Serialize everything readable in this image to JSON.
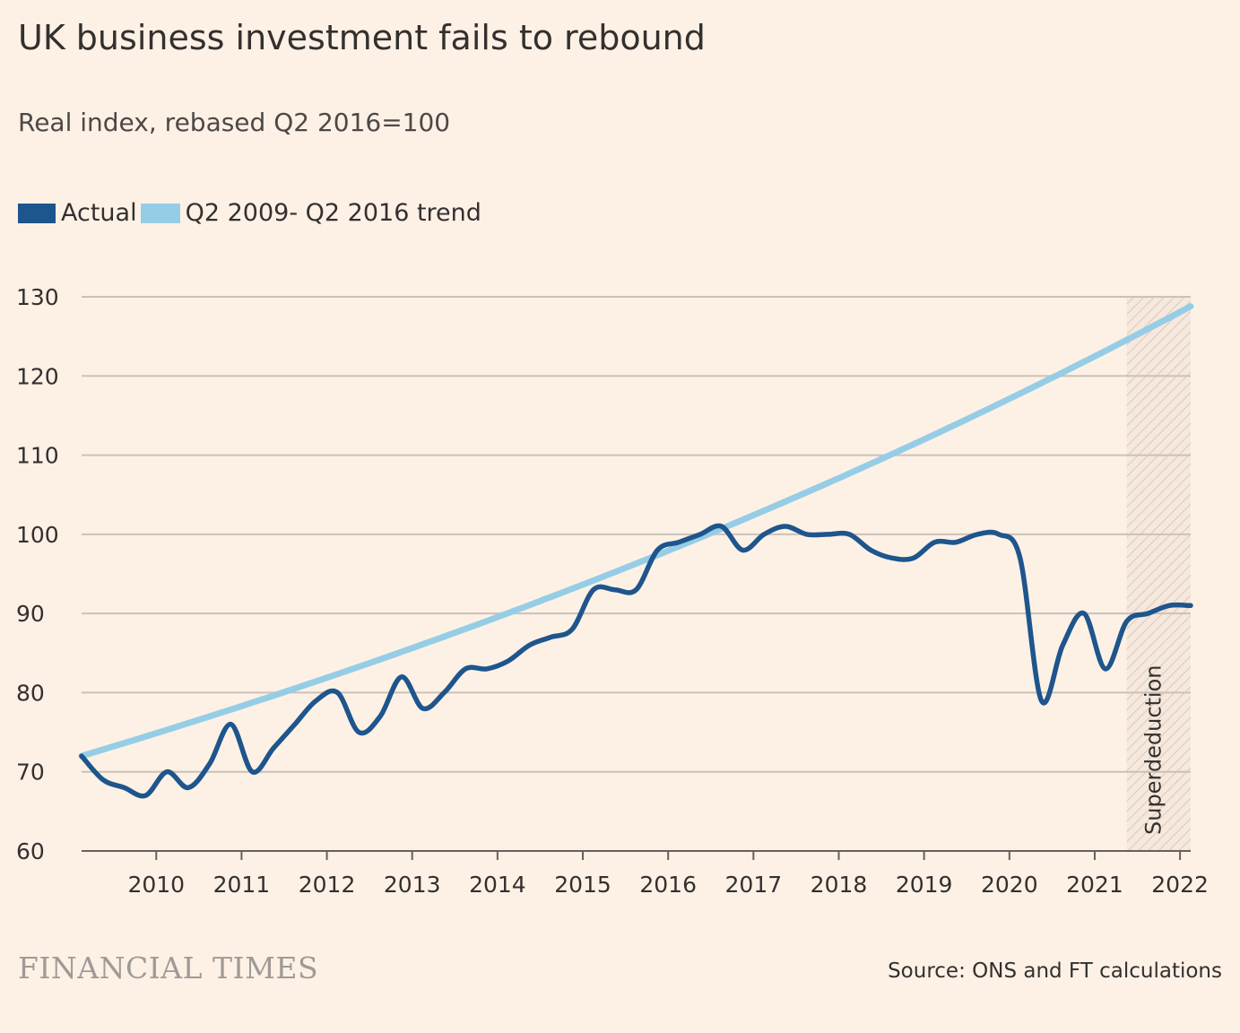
{
  "chart_data": {
    "type": "line",
    "title": "UK business investment fails to rebound",
    "subtitle": "Real index, rebased Q2 2016=100",
    "xlabel": "",
    "ylabel": "",
    "ylim": [
      60,
      130
    ],
    "xlim": [
      2009.125,
      2022.125
    ],
    "yticks": [
      60,
      70,
      80,
      90,
      100,
      110,
      120,
      130
    ],
    "xticks": [
      "2010",
      "2011",
      "2012",
      "2013",
      "2014",
      "2015",
      "2016",
      "2017",
      "2018",
      "2019",
      "2020",
      "2021",
      "2022"
    ],
    "grid": "horizontal",
    "legend_position": "top-left",
    "series": [
      {
        "name": "Actual",
        "color": "#1e558c",
        "x": [
          2009.125,
          2009.375,
          2009.625,
          2009.875,
          2010.125,
          2010.375,
          2010.625,
          2010.875,
          2011.125,
          2011.375,
          2011.625,
          2011.875,
          2012.125,
          2012.375,
          2012.625,
          2012.875,
          2013.125,
          2013.375,
          2013.625,
          2013.875,
          2014.125,
          2014.375,
          2014.625,
          2014.875,
          2015.125,
          2015.375,
          2015.625,
          2015.875,
          2016.125,
          2016.375,
          2016.625,
          2016.875,
          2017.125,
          2017.375,
          2017.625,
          2017.875,
          2018.125,
          2018.375,
          2018.625,
          2018.875,
          2019.125,
          2019.375,
          2019.625,
          2019.875,
          2020.125,
          2020.375,
          2020.625,
          2020.875,
          2021.125,
          2021.375,
          2021.625,
          2021.875,
          2022.125
        ],
        "values": [
          72,
          69,
          68,
          67,
          70,
          68,
          71,
          76,
          70,
          73,
          76,
          79,
          80,
          75,
          77,
          82,
          78,
          80,
          83,
          83,
          84,
          86,
          87,
          88,
          93,
          93,
          93,
          98,
          99,
          100,
          101,
          98,
          100,
          101,
          100,
          100,
          100,
          98,
          97,
          97,
          99,
          99,
          100,
          100,
          97,
          79,
          86,
          90,
          83,
          89,
          90,
          91,
          91
        ]
      },
      {
        "name": "Q2 2009- Q2 2016 trend",
        "color": "#96cde6",
        "start": {
          "x": 2009.125,
          "y": 72
        },
        "end": {
          "x": 2022.125,
          "y": 128.8
        }
      }
    ],
    "annotations": [
      {
        "label": "Superdeduction",
        "x_start": 2021.375,
        "x_end": 2022.125,
        "style": "hatched"
      }
    ]
  },
  "header": {
    "title": "UK business investment fails to rebound",
    "subtitle": "Real index, rebased Q2 2016=100"
  },
  "legend": {
    "actual_label": "Actual",
    "trend_label": "Q2 2009- Q2 2016 trend"
  },
  "footer": {
    "logo": "FINANCIAL TIMES",
    "source": "Source: ONS and FT calculations"
  }
}
